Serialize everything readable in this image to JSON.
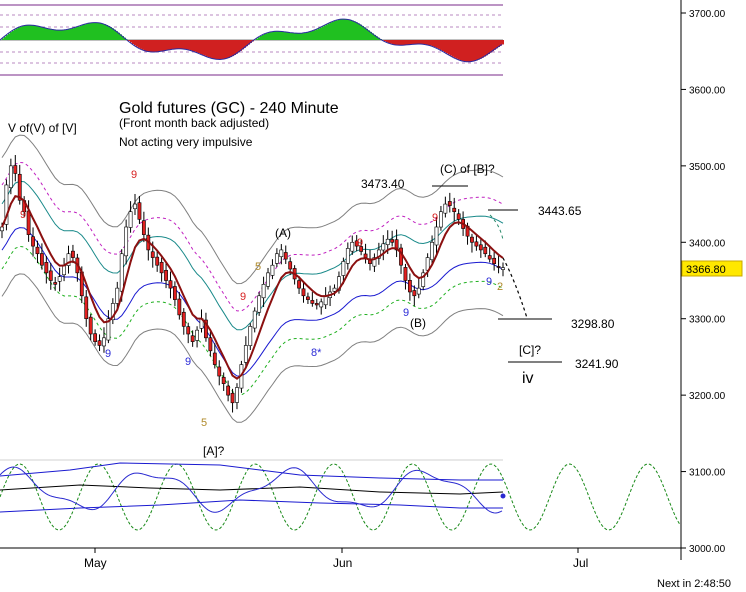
{
  "chart_data": {
    "type": "candlestick",
    "instrument": "Gold futures (GC)",
    "title": "Gold futures (GC) - 240 Minute",
    "subtitle": "(Front month back adjusted)",
    "note": "Not acting very impulsive",
    "y_axis": {
      "side": "right",
      "ylim": [
        3000,
        3730
      ],
      "ticks": [
        "3700.00",
        "3600.00",
        "3500.00",
        "3400.00",
        "3300.00",
        "3200.00",
        "3100.00",
        "3000.00"
      ]
    },
    "x_axis": {
      "ticks": [
        "May",
        "Jun",
        "Jul"
      ]
    },
    "current_price": "3366.80",
    "countdown": "Next in 2:48:50",
    "levels": [
      {
        "label": "3443.65",
        "value": 3443.65
      },
      {
        "label": "3298.80",
        "value": 3298.8
      },
      {
        "label": "3241.90",
        "value": 3241.9
      }
    ],
    "wave_labels": {
      "v_top": "V of(V) of [V]",
      "a_bottom": "[A]?",
      "a_wave": "(A)",
      "b_wave": "(B)",
      "c_of_b": "(C) of [B]?",
      "c_wave": "[C]?",
      "iv": "iv",
      "peak_value": "3473.40"
    },
    "count_markers": [
      {
        "text": "9",
        "color": "#d62020"
      },
      {
        "text": "9",
        "color": "#d62020"
      },
      {
        "text": "9",
        "color": "#2a2ad6"
      },
      {
        "text": "9",
        "color": "#2a2ad6"
      },
      {
        "text": "9",
        "color": "#d62020"
      },
      {
        "text": "9",
        "color": "#d62020"
      },
      {
        "text": "8*",
        "color": "#2a2ad6"
      },
      {
        "text": "9",
        "color": "#d62020"
      },
      {
        "text": "9",
        "color": "#2a2ad6"
      },
      {
        "text": "9",
        "color": "#d62020"
      },
      {
        "text": "9",
        "color": "#2a2ad6"
      },
      {
        "text": "2",
        "color": "#b08a2a"
      },
      {
        "text": "5",
        "color": "#b08a2a"
      },
      {
        "text": "5",
        "color": "#b08a2a"
      }
    ],
    "closes": [
      3420,
      3475,
      3500,
      3490,
      3455,
      3440,
      3410,
      3395,
      3385,
      3370,
      3360,
      3350,
      3345,
      3355,
      3370,
      3385,
      3380,
      3360,
      3330,
      3300,
      3280,
      3270,
      3265,
      3275,
      3300,
      3320,
      3340,
      3385,
      3420,
      3440,
      3450,
      3430,
      3410,
      3390,
      3380,
      3370,
      3360,
      3350,
      3340,
      3325,
      3305,
      3290,
      3280,
      3270,
      3285,
      3300,
      3275,
      3258,
      3240,
      3225,
      3215,
      3200,
      3190,
      3210,
      3240,
      3265,
      3290,
      3310,
      3330,
      3345,
      3360,
      3370,
      3385,
      3390,
      3378,
      3365,
      3352,
      3340,
      3330,
      3325,
      3320,
      3318,
      3322,
      3330,
      3335,
      3340,
      3355,
      3375,
      3392,
      3400,
      3395,
      3388,
      3380,
      3372,
      3380,
      3390,
      3398,
      3404,
      3400,
      3390,
      3370,
      3350,
      3335,
      3330,
      3340,
      3360,
      3380,
      3400,
      3420,
      3440,
      3450,
      3448,
      3440,
      3430,
      3418,
      3408,
      3400,
      3395,
      3390,
      3385,
      3378,
      3372,
      3368,
      3366.8
    ]
  }
}
